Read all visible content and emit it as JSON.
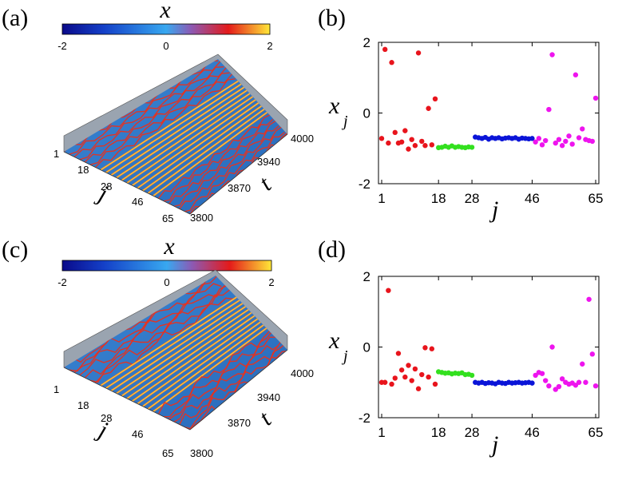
{
  "panels": {
    "a": "(a)",
    "b": "(b)",
    "c": "(c)",
    "d": "(d)"
  },
  "colorbar": {
    "title": "x",
    "ticks": [
      "-2",
      "0",
      "2"
    ]
  },
  "colors": {
    "red": "#e8141c",
    "green": "#33e01f",
    "blue": "#0a14d8",
    "magenta": "#ee14ee",
    "surface_base": "#2f78c8",
    "stripe": "#ff6a14"
  },
  "chart_data": [
    {
      "panel": "(a)",
      "type": "heatmap",
      "render": "3d-surface",
      "colorbar_label": "x",
      "colorbar_range": [
        -2,
        2
      ],
      "colorbar_ticks": [
        "-2",
        "0",
        "2"
      ],
      "xlabel": "j",
      "ylabel": "t",
      "x_ticks": [
        "1",
        "18",
        "28",
        "46",
        "65"
      ],
      "y_ticks": [
        "3800",
        "3870",
        "3940",
        "4000"
      ]
    },
    {
      "panel": "(b)",
      "type": "scatter",
      "xlabel": "j",
      "ylabel": "x",
      "ylabel_sub": "j",
      "xlim": [
        1,
        65
      ],
      "ylim": [
        -2,
        2
      ],
      "x_ticks": [
        "1",
        "18",
        "28",
        "46",
        "65"
      ],
      "y_ticks": [
        "-2",
        "0",
        "2"
      ],
      "series": [
        {
          "color": "#e8141c",
          "x": [
            1,
            2,
            3,
            4,
            5,
            6,
            7,
            8,
            9,
            10,
            11,
            12,
            13,
            14,
            15,
            16,
            17
          ],
          "y": [
            -0.72,
            1.8,
            -0.85,
            1.43,
            -0.55,
            -0.85,
            -0.82,
            -0.5,
            -1.02,
            -0.75,
            -0.92,
            1.7,
            -0.8,
            -0.92,
            0.13,
            -0.9,
            0.4
          ]
        },
        {
          "color": "#33e01f",
          "x": [
            18,
            19,
            20,
            21,
            22,
            23,
            24,
            25,
            26,
            27,
            28
          ],
          "y": [
            -0.98,
            -0.97,
            -0.94,
            -0.97,
            -0.93,
            -0.97,
            -0.95,
            -0.97,
            -0.98,
            -0.96,
            -0.97
          ]
        },
        {
          "color": "#0a14d8",
          "x": [
            29,
            30,
            31,
            32,
            33,
            34,
            35,
            36,
            37,
            38,
            39,
            40,
            41,
            42,
            43,
            44,
            45,
            46
          ],
          "y": [
            -0.68,
            -0.7,
            -0.72,
            -0.69,
            -0.74,
            -0.7,
            -0.72,
            -0.7,
            -0.73,
            -0.71,
            -0.7,
            -0.72,
            -0.7,
            -0.74,
            -0.71,
            -0.72,
            -0.73,
            -0.72
          ]
        },
        {
          "color": "#ee14ee",
          "x": [
            47,
            48,
            49,
            50,
            51,
            52,
            53,
            54,
            55,
            56,
            57,
            58,
            59,
            60,
            61,
            62,
            63,
            64,
            65
          ],
          "y": [
            -0.82,
            -0.72,
            -0.9,
            -0.78,
            0.1,
            1.65,
            -0.85,
            -0.75,
            -0.92,
            -0.8,
            -0.65,
            -0.88,
            1.08,
            -0.7,
            -0.45,
            -0.75,
            -0.78,
            -0.8,
            0.42
          ]
        }
      ]
    },
    {
      "panel": "(c)",
      "type": "heatmap",
      "render": "3d-surface",
      "colorbar_label": "x",
      "colorbar_range": [
        -2,
        2
      ],
      "colorbar_ticks": [
        "-2",
        "0",
        "2"
      ],
      "xlabel": "j",
      "ylabel": "t",
      "x_ticks": [
        "1",
        "18",
        "28",
        "46",
        "65"
      ],
      "y_ticks": [
        "3800",
        "3870",
        "3940",
        "4000"
      ]
    },
    {
      "panel": "(d)",
      "type": "scatter",
      "xlabel": "j",
      "ylabel": "x",
      "ylabel_sub": "j",
      "xlim": [
        1,
        65
      ],
      "ylim": [
        -2,
        2
      ],
      "x_ticks": [
        "1",
        "18",
        "28",
        "46",
        "65"
      ],
      "y_ticks": [
        "-2",
        "0",
        "2"
      ],
      "series": [
        {
          "color": "#e8141c",
          "x": [
            1,
            2,
            3,
            4,
            5,
            6,
            7,
            8,
            9,
            10,
            11,
            12,
            13,
            14,
            15,
            16,
            17
          ],
          "y": [
            -1.0,
            -1.0,
            1.6,
            -1.05,
            -0.88,
            -0.18,
            -0.65,
            -0.85,
            -0.52,
            -0.95,
            -0.62,
            -1.18,
            -0.78,
            -0.02,
            -0.85,
            -0.05,
            -1.05
          ]
        },
        {
          "color": "#33e01f",
          "x": [
            18,
            19,
            20,
            21,
            22,
            23,
            24,
            25,
            26,
            27,
            28
          ],
          "y": [
            -0.7,
            -0.72,
            -0.74,
            -0.73,
            -0.76,
            -0.74,
            -0.75,
            -0.73,
            -0.78,
            -0.77,
            -0.8
          ]
        },
        {
          "color": "#0a14d8",
          "x": [
            29,
            30,
            31,
            32,
            33,
            34,
            35,
            36,
            37,
            38,
            39,
            40,
            41,
            42,
            43,
            44,
            45,
            46
          ],
          "y": [
            -1.0,
            -1.02,
            -1.0,
            -1.03,
            -1.01,
            -1.02,
            -1.04,
            -1.0,
            -1.02,
            -1.03,
            -1.0,
            -1.02,
            -1.01,
            -1.0,
            -1.02,
            -1.01,
            -1.0,
            -1.02
          ]
        },
        {
          "color": "#ee14ee",
          "x": [
            47,
            48,
            49,
            50,
            51,
            52,
            53,
            54,
            55,
            56,
            57,
            58,
            59,
            60,
            61,
            62,
            63,
            64,
            65
          ],
          "y": [
            -0.8,
            -0.72,
            -0.75,
            -0.95,
            -1.1,
            0.0,
            -1.2,
            -1.12,
            -0.9,
            -1.0,
            -1.05,
            -1.02,
            -1.08,
            -1.0,
            -0.48,
            -1.0,
            1.35,
            -0.2,
            -1.1
          ]
        }
      ]
    }
  ]
}
